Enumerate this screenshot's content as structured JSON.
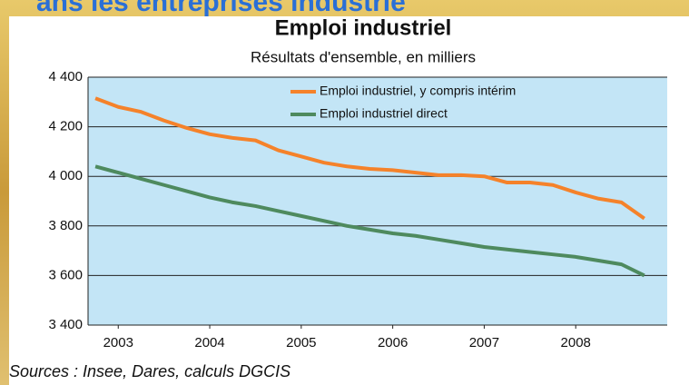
{
  "header": {
    "text": "ans les entreprises industrie"
  },
  "chart_data": {
    "type": "line",
    "title": "Emploi industriel",
    "subtitle": "Résultats d'ensemble, en milliers",
    "source": "Sources : Insee, Dares, calculs DGCIS",
    "x": [
      2002.75,
      2003,
      2003.25,
      2003.5,
      2003.75,
      2004,
      2004.25,
      2004.5,
      2004.75,
      2005,
      2005.25,
      2005.5,
      2005.75,
      2006,
      2006.25,
      2006.5,
      2006.75,
      2007,
      2007.25,
      2007.5,
      2007.75,
      2008,
      2008.25,
      2008.5,
      2008.75
    ],
    "series": [
      {
        "name": "Emploi industriel, y compris intérim",
        "color": "#f5822a",
        "values": [
          4315,
          4280,
          4260,
          4225,
          4195,
          4170,
          4155,
          4145,
          4105,
          4080,
          4055,
          4040,
          4030,
          4025,
          4015,
          4005,
          4005,
          4000,
          3975,
          3975,
          3965,
          3935,
          3910,
          3895,
          3830
        ]
      },
      {
        "name": "Emploi industriel direct",
        "color": "#4e8a5e",
        "values": [
          4040,
          4015,
          3990,
          3965,
          3940,
          3915,
          3895,
          3880,
          3860,
          3840,
          3820,
          3800,
          3785,
          3770,
          3760,
          3745,
          3730,
          3715,
          3705,
          3695,
          3685,
          3675,
          3660,
          3645,
          3600
        ]
      }
    ],
    "xlim": [
      2002.67,
      2009
    ],
    "xticks": [
      2003,
      2004,
      2005,
      2006,
      2007,
      2008
    ],
    "ylim": [
      3400,
      4400
    ],
    "yticks": [
      {
        "value": 3400,
        "label": "3 400"
      },
      {
        "value": 3600,
        "label": "3 600"
      },
      {
        "value": 3800,
        "label": "3 800"
      },
      {
        "value": 4000,
        "label": "4 000"
      },
      {
        "value": 4200,
        "label": "4 200"
      },
      {
        "value": 4400,
        "label": "4 400"
      }
    ],
    "grid": true,
    "plot_background": "#c3e5f6",
    "legend": "top-right"
  }
}
